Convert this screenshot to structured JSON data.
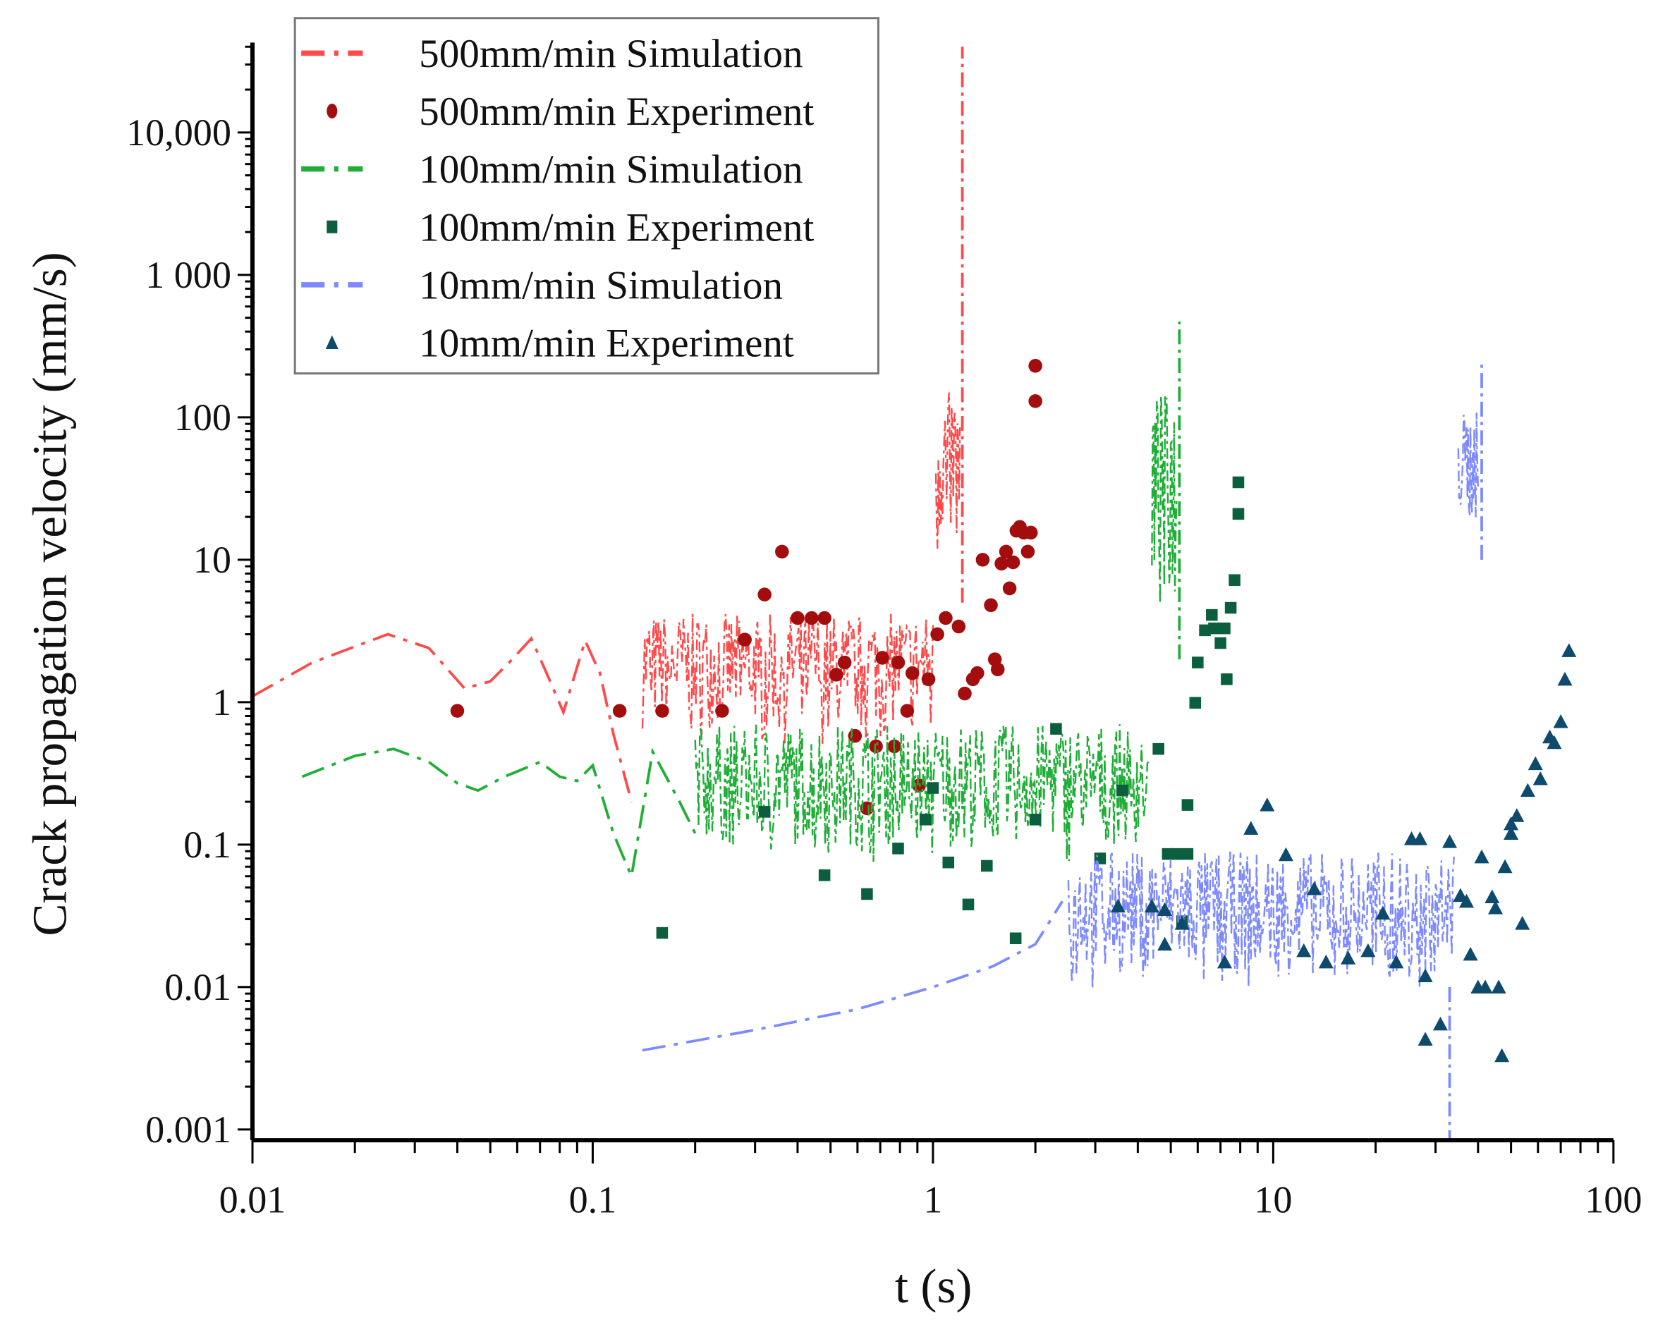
{
  "chart_data": {
    "type": "scatter",
    "title": "",
    "xlabel": "t (s)",
    "ylabel": "Crack propagation velocity (mm/s)",
    "xscale": "log",
    "yscale": "log",
    "xlim": [
      0.01,
      100
    ],
    "ylim": [
      0.001,
      40000
    ],
    "xticks": [
      {
        "v": 0.01,
        "label": "0.01"
      },
      {
        "v": 0.1,
        "label": "0.1"
      },
      {
        "v": 1,
        "label": "1"
      },
      {
        "v": 10,
        "label": "10"
      },
      {
        "v": 100,
        "label": "100"
      }
    ],
    "yticks": [
      {
        "v": 10000,
        "label": "10,000"
      },
      {
        "v": 1000,
        "label": "1 000"
      },
      {
        "v": 100,
        "label": "100"
      },
      {
        "v": 10,
        "label": "10"
      },
      {
        "v": 1,
        "label": "1"
      },
      {
        "v": 0.1,
        "label": "0.1"
      },
      {
        "v": 0.01,
        "label": "0.01"
      },
      {
        "v": 0.001,
        "label": "0.001"
      }
    ],
    "grid": false,
    "legend_position": "top-left",
    "series": [
      {
        "name": "500mm/min Simulation",
        "kind": "line",
        "style": "dash-dot",
        "color": "#ff4a4a",
        "smooth": [
          [
            0.01,
            1.1
          ],
          [
            0.015,
            1.9
          ],
          [
            0.025,
            3.0
          ],
          [
            0.033,
            2.4
          ],
          [
            0.042,
            1.25
          ],
          [
            0.05,
            1.4
          ],
          [
            0.058,
            2.0
          ],
          [
            0.066,
            2.8
          ],
          [
            0.075,
            1.4
          ],
          [
            0.082,
            0.85
          ],
          [
            0.095,
            2.7
          ],
          [
            0.105,
            1.6
          ],
          [
            0.115,
            0.6
          ],
          [
            0.13,
            0.2
          ]
        ],
        "noise_bands": [
          {
            "x": [
              0.14,
              1.0
            ],
            "y": [
              0.35,
              4.2
            ]
          },
          {
            "x": [
              1.02,
              1.2
            ],
            "y": [
              5,
              160
            ]
          }
        ],
        "peak": [
          1.22,
          40000
        ]
      },
      {
        "name": "500mm/min Experiment",
        "kind": "scatter",
        "marker": "circle",
        "color": "#a30d0d",
        "points": [
          [
            0.04,
            0.87
          ],
          [
            0.12,
            0.87
          ],
          [
            0.16,
            0.87
          ],
          [
            0.24,
            0.87
          ],
          [
            0.28,
            2.75
          ],
          [
            0.32,
            5.7
          ],
          [
            0.36,
            11.4
          ],
          [
            0.4,
            3.9
          ],
          [
            0.44,
            3.9
          ],
          [
            0.48,
            3.9
          ],
          [
            0.52,
            1.56
          ],
          [
            0.55,
            1.9
          ],
          [
            0.59,
            0.58
          ],
          [
            0.64,
            0.18
          ],
          [
            0.68,
            0.49
          ],
          [
            0.71,
            2.05
          ],
          [
            0.77,
            0.49
          ],
          [
            0.79,
            1.9
          ],
          [
            0.84,
            0.87
          ],
          [
            0.87,
            1.6
          ],
          [
            0.91,
            0.26
          ],
          [
            0.97,
            1.45
          ],
          [
            1.03,
            3.0
          ],
          [
            1.09,
            3.9
          ],
          [
            1.19,
            3.4
          ],
          [
            1.24,
            1.15
          ],
          [
            1.31,
            1.45
          ],
          [
            1.35,
            1.6
          ],
          [
            1.4,
            10
          ],
          [
            1.48,
            4.8
          ],
          [
            1.52,
            2.0
          ],
          [
            1.55,
            1.7
          ],
          [
            1.59,
            9.4
          ],
          [
            1.64,
            11.4
          ],
          [
            1.68,
            6.3
          ],
          [
            1.72,
            9.6
          ],
          [
            1.76,
            16
          ],
          [
            1.8,
            17
          ],
          [
            1.85,
            15.5
          ],
          [
            1.9,
            11.4
          ],
          [
            1.94,
            15.5
          ],
          [
            2.0,
            130
          ],
          [
            2.0,
            230
          ]
        ]
      },
      {
        "name": "100mm/min Simulation",
        "kind": "line",
        "style": "dash-dot",
        "color": "#1fae36",
        "smooth": [
          [
            0.014,
            0.3
          ],
          [
            0.02,
            0.42
          ],
          [
            0.026,
            0.47
          ],
          [
            0.033,
            0.38
          ],
          [
            0.04,
            0.27
          ],
          [
            0.046,
            0.24
          ],
          [
            0.055,
            0.3
          ],
          [
            0.07,
            0.38
          ],
          [
            0.08,
            0.3
          ],
          [
            0.09,
            0.28
          ],
          [
            0.1,
            0.36
          ],
          [
            0.115,
            0.12
          ],
          [
            0.13,
            0.06
          ],
          [
            0.15,
            0.45
          ],
          [
            0.18,
            0.2
          ],
          [
            0.2,
            0.12
          ]
        ],
        "noise_bands": [
          {
            "x": [
              0.2,
              4.3
            ],
            "y": [
              0.05,
              0.7
            ]
          },
          {
            "x": [
              4.4,
              5.2
            ],
            "y": [
              2,
              150
            ]
          }
        ],
        "peak": [
          5.3,
          470
        ]
      },
      {
        "name": "100mm/min Experiment",
        "kind": "scatter",
        "marker": "square",
        "color": "#0b5e3e",
        "points": [
          [
            0.16,
            0.024
          ],
          [
            0.32,
            0.17
          ],
          [
            0.48,
            0.061
          ],
          [
            0.64,
            0.045
          ],
          [
            0.79,
            0.094
          ],
          [
            0.95,
            0.15
          ],
          [
            1.0,
            0.25
          ],
          [
            1.11,
            0.075
          ],
          [
            1.27,
            0.038
          ],
          [
            1.44,
            0.071
          ],
          [
            1.75,
            0.022
          ],
          [
            2.0,
            0.15
          ],
          [
            2.3,
            0.65
          ],
          [
            3.1,
            0.08
          ],
          [
            3.6,
            0.24
          ],
          [
            4.6,
            0.47
          ],
          [
            4.9,
            0.086
          ],
          [
            5.2,
            0.086
          ],
          [
            5.6,
            0.086
          ],
          [
            5.4,
            0.029
          ],
          [
            5.6,
            0.19
          ],
          [
            5.9,
            0.99
          ],
          [
            6.0,
            1.9
          ],
          [
            6.3,
            3.2
          ],
          [
            6.6,
            4.1
          ],
          [
            6.7,
            3.3
          ],
          [
            7.0,
            2.6
          ],
          [
            7.2,
            3.3
          ],
          [
            7.5,
            4.6
          ],
          [
            7.3,
            1.45
          ],
          [
            7.7,
            7.2
          ],
          [
            7.9,
            21
          ],
          [
            7.9,
            35
          ]
        ]
      },
      {
        "name": "10mm/min Simulation",
        "kind": "line",
        "style": "dash-dot",
        "color": "#7d8aff",
        "smooth": [
          [
            0.14,
            0.0036
          ],
          [
            0.3,
            0.005
          ],
          [
            0.6,
            0.007
          ],
          [
            1.0,
            0.01
          ],
          [
            1.5,
            0.014
          ],
          [
            2.0,
            0.02
          ],
          [
            2.4,
            0.04
          ]
        ],
        "noise_bands": [
          {
            "x": [
              2.5,
              34
            ],
            "y": [
              0.006,
              0.09
            ]
          },
          {
            "x": [
              35,
              40
            ],
            "y": [
              10,
              110
            ]
          }
        ],
        "peak": [
          41,
          250
        ]
      },
      {
        "name": "10mm/min Experiment",
        "kind": "scatter",
        "marker": "triangle",
        "color": "#0d4a6e",
        "points": [
          [
            3.5,
            0.037
          ],
          [
            4.4,
            0.037
          ],
          [
            4.8,
            0.035
          ],
          [
            4.8,
            0.02
          ],
          [
            5.4,
            0.028
          ],
          [
            7.2,
            0.015
          ],
          [
            8.6,
            0.13
          ],
          [
            9.6,
            0.19
          ],
          [
            10.9,
            0.085
          ],
          [
            12.3,
            0.018
          ],
          [
            13.2,
            0.049
          ],
          [
            14.3,
            0.015
          ],
          [
            16.6,
            0.016
          ],
          [
            19,
            0.018
          ],
          [
            21,
            0.033
          ],
          [
            23,
            0.015
          ],
          [
            25.5,
            0.11
          ],
          [
            27,
            0.11
          ],
          [
            28,
            0.012
          ],
          [
            28,
            0.0043
          ],
          [
            31,
            0.0055
          ],
          [
            33,
            0.105
          ],
          [
            35.5,
            0.044
          ],
          [
            37,
            0.04
          ],
          [
            38,
            0.017
          ],
          [
            40,
            0.01
          ],
          [
            42,
            0.01
          ],
          [
            41,
            0.082
          ],
          [
            44,
            0.043
          ],
          [
            45,
            0.036
          ],
          [
            46,
            0.01
          ],
          [
            47,
            0.0033
          ],
          [
            48,
            0.07
          ],
          [
            50,
            0.14
          ],
          [
            50,
            0.12
          ],
          [
            52,
            0.16
          ],
          [
            54,
            0.028
          ],
          [
            56,
            0.24
          ],
          [
            59,
            0.37
          ],
          [
            61,
            0.29
          ],
          [
            65,
            0.57
          ],
          [
            67,
            0.52
          ],
          [
            70,
            0.73
          ],
          [
            72,
            1.45
          ],
          [
            74,
            2.3
          ]
        ]
      }
    ]
  }
}
